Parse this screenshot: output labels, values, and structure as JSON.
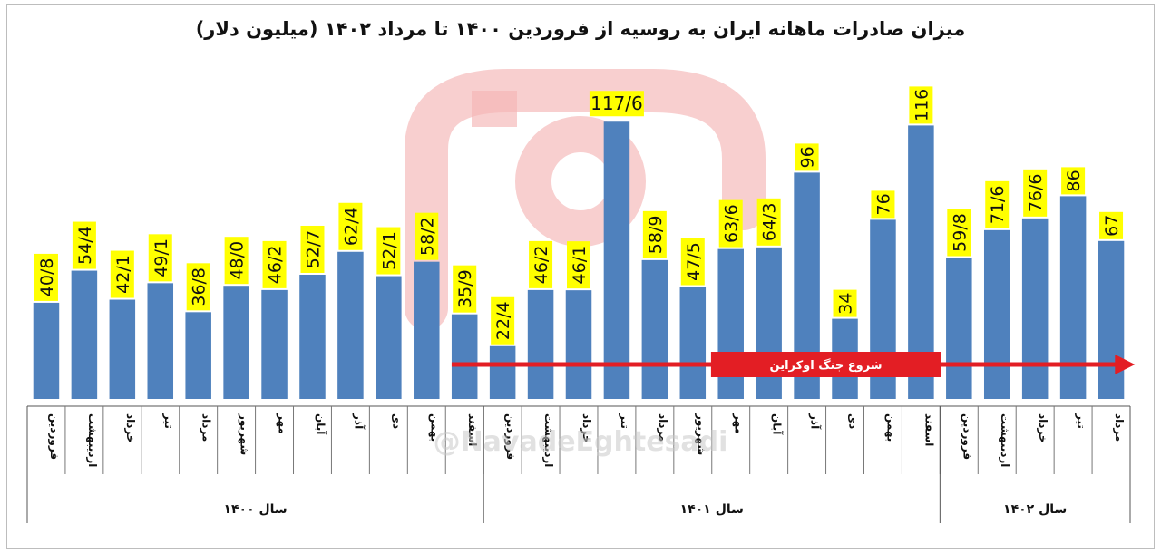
{
  "chart_data": {
    "type": "bar",
    "title": "میزان صادرات ماهانه ایران به روسیه از فروردین ۱۴۰۰ تا مرداد ۱۴۰۲ (میلیون دلار)",
    "categories": [
      "فروردین",
      "اردیبهشت",
      "خرداد",
      "تیر",
      "مرداد",
      "شهریور",
      "مهر",
      "آبان",
      "آذر",
      "دی",
      "بهمن",
      "اسفند",
      "فروردین",
      "اردیبهشت",
      "خرداد",
      "تیر",
      "مرداد",
      "شهریور",
      "مهر",
      "آبان",
      "آذر",
      "دی",
      "بهمن",
      "اسفند",
      "فروردین",
      "اردیبهشت",
      "خرداد",
      "تیر",
      "مرداد"
    ],
    "values": [
      40.8,
      54.4,
      42.1,
      49.1,
      36.8,
      48.0,
      46.2,
      52.7,
      62.4,
      52.1,
      58.2,
      35.9,
      22.4,
      46.2,
      46.1,
      117.6,
      58.9,
      47.5,
      63.6,
      64.3,
      96,
      34,
      76,
      116,
      59.8,
      71.6,
      76.6,
      86,
      67
    ],
    "data_labels": [
      "40/8",
      "54/4",
      "42/1",
      "49/1",
      "36/8",
      "48/0",
      "46/2",
      "52/7",
      "62/4",
      "52/1",
      "58/2",
      "35/9",
      "22/4",
      "46/2",
      "46/1",
      "117/6",
      "58/9",
      "47/5",
      "63/6",
      "64/3",
      "96",
      "34",
      "76",
      "116",
      "59/8",
      "71/6",
      "76/6",
      "86",
      "67"
    ],
    "ylim": [
      0,
      125
    ],
    "groups": [
      {
        "label": "سال ۱۴۰۰",
        "start": 0,
        "count": 12
      },
      {
        "label": "سال ۱۴۰۱",
        "start": 12,
        "count": 12
      },
      {
        "label": "سال ۱۴۰۲",
        "start": 24,
        "count": 5
      }
    ],
    "annotation": {
      "text": "شروع جنگ اوکراین",
      "start_index": 11,
      "end_index": 28
    },
    "colors": {
      "bar": "#4f81bd",
      "label_bg": "#ffff00",
      "arrow": "#e31e24",
      "watermark": "#f5b5b5"
    }
  },
  "watermark": {
    "handle": "@NavadeEghtesadi"
  }
}
